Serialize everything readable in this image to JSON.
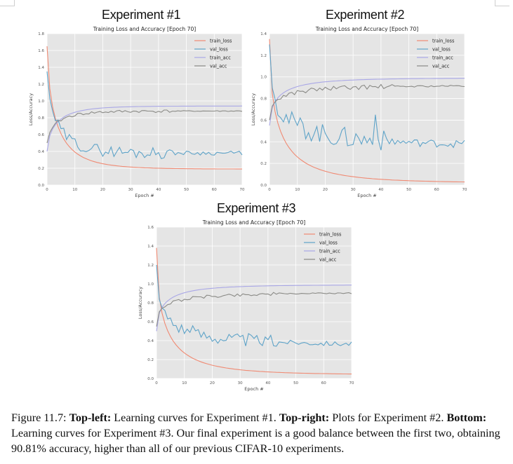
{
  "colors": {
    "train_loss": "#f08a73",
    "val_loss": "#5ea3c8",
    "train_acc": "#a9a7e6",
    "val_acc": "#8a8a86",
    "panel_bg": "#e5e5e5",
    "grid": "#ffffff"
  },
  "experiment_titles": [
    "Experiment #1",
    "Experiment #2",
    "Experiment #3"
  ],
  "chart_data": [
    {
      "type": "line",
      "title": "Training Loss and Accuracy [Epoch 70]",
      "xlabel": "Epoch #",
      "ylabel": "Loss/Accuracy",
      "xlim": [
        0,
        70
      ],
      "ylim": [
        0,
        1.8
      ],
      "xticks": [
        "0",
        "10",
        "20",
        "30",
        "40",
        "50",
        "60",
        "70"
      ],
      "yticks": [
        "0.0",
        "0.2",
        "0.4",
        "0.6",
        "0.8",
        "1.0",
        "1.2",
        "1.4",
        "1.6",
        "1.8"
      ],
      "legend": [
        "train_loss",
        "val_loss",
        "train_acc",
        "val_acc"
      ],
      "legend_position": "top-right",
      "grid": true,
      "series": [
        {
          "name": "train_loss",
          "start": 1.65,
          "end": 0.19,
          "rate": 3.6,
          "curve": 1.5
        },
        {
          "name": "train_acc",
          "start": 0.4,
          "end": 0.94,
          "rate": 3.6,
          "curve": 1.5
        },
        {
          "name": "val_loss",
          "start": 1.35,
          "end": 0.38,
          "rate": 3.6,
          "curve": 1.4,
          "noise": 0.05
        },
        {
          "name": "val_acc",
          "start": 0.5,
          "end": 0.88,
          "rate": 3.6,
          "curve": 1.4,
          "noise": 0.012
        }
      ]
    },
    {
      "type": "line",
      "title": "Training Loss and Accuracy [Epoch 70]",
      "xlabel": "Epoch #",
      "ylabel": "Loss/Accuracy",
      "xlim": [
        0,
        70
      ],
      "ylim": [
        0,
        1.4
      ],
      "xticks": [
        "0",
        "10",
        "20",
        "30",
        "40",
        "50",
        "60",
        "70"
      ],
      "yticks": [
        "0.0",
        "0.2",
        "0.4",
        "0.6",
        "0.8",
        "1.0",
        "1.2",
        "1.4"
      ],
      "legend": [
        "train_loss",
        "val_loss",
        "train_acc",
        "val_acc"
      ],
      "legend_position": "top-right",
      "grid": true,
      "series": [
        {
          "name": "train_loss",
          "start": 1.35,
          "end": 0.02,
          "rate": 3.8,
          "curve": 1.8
        },
        {
          "name": "train_acc",
          "start": 0.55,
          "end": 0.99,
          "rate": 3.8,
          "curve": 1.8
        },
        {
          "name": "val_loss",
          "start": 1.3,
          "end": 0.36,
          "rate": 3.6,
          "curve": 2.2,
          "noise": 0.07,
          "spike": [
            38,
            0.65
          ]
        },
        {
          "name": "val_acc",
          "start": 0.6,
          "end": 0.92,
          "rate": 3.6,
          "curve": 2.0,
          "noise": 0.015
        }
      ]
    },
    {
      "type": "line",
      "title": "Training Loss and Accuracy [Epoch 70]",
      "xlabel": "Epoch #",
      "ylabel": "Loss/Accuracy",
      "xlim": [
        0,
        70
      ],
      "ylim": [
        0,
        1.6
      ],
      "xticks": [
        "0",
        "10",
        "20",
        "30",
        "40",
        "50",
        "60",
        "70"
      ],
      "yticks": [
        "0.0",
        "0.2",
        "0.4",
        "0.6",
        "0.8",
        "1.0",
        "1.2",
        "1.4",
        "1.6"
      ],
      "legend": [
        "train_loss",
        "val_loss",
        "train_acc",
        "val_acc"
      ],
      "legend_position": "top-right",
      "grid": true,
      "series": [
        {
          "name": "train_loss",
          "start": 1.38,
          "end": 0.04,
          "rate": 3.6,
          "curve": 1.8
        },
        {
          "name": "train_acc",
          "start": 0.5,
          "end": 0.99,
          "rate": 3.6,
          "curve": 1.8
        },
        {
          "name": "val_loss",
          "start": 1.2,
          "end": 0.35,
          "rate": 3.6,
          "curve": 2.2,
          "noise": 0.05
        },
        {
          "name": "val_acc",
          "start": 0.55,
          "end": 0.91,
          "rate": 3.6,
          "curve": 2.2,
          "noise": 0.012
        }
      ]
    }
  ],
  "caption": {
    "prefix": "Figure 11.7: ",
    "top_left_label": "Top-left:",
    "top_left_text": " Learning curves for Experiment #1. ",
    "top_right_label": "Top-right:",
    "top_right_text": " Plots for Experiment #2. ",
    "bottom_label": "Bottom:",
    "bottom_text": " Learning curves for Experiment #3. Our final experiment is a good balance between the first two, obtaining 90.81% accuracy, higher than all of our previous CIFAR-10 experiments."
  }
}
